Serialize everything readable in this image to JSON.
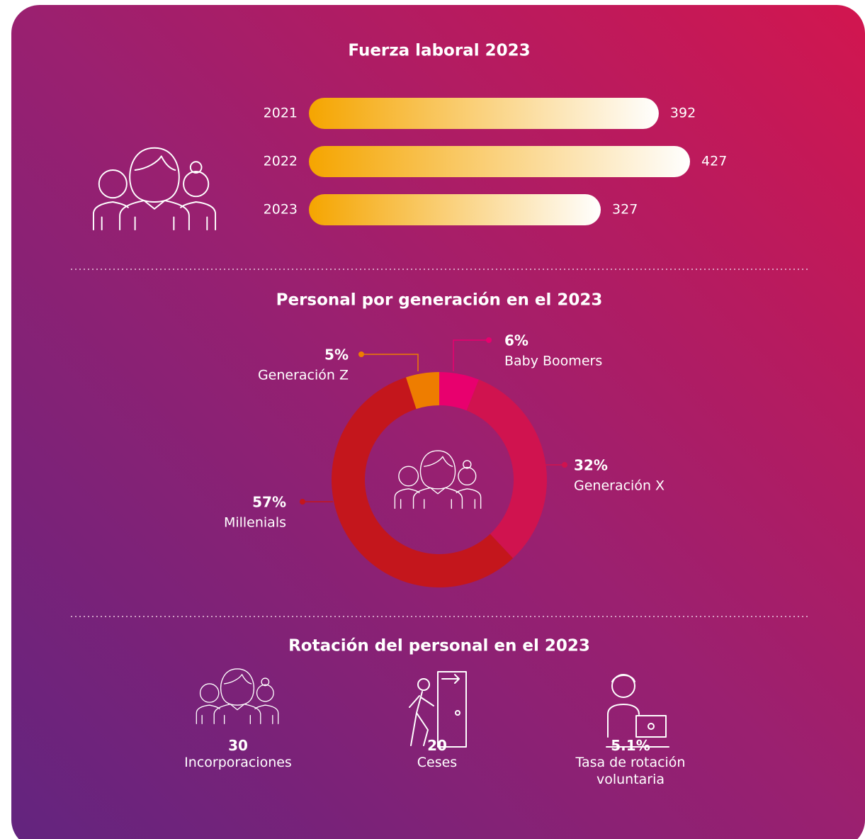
{
  "chart_data": [
    {
      "type": "bar",
      "orientation": "horizontal",
      "title": "Fuerza laboral 2023",
      "categories": [
        "2021",
        "2022",
        "2023"
      ],
      "values": [
        392,
        427,
        327
      ],
      "color": "#f5a500",
      "xlim": [
        0,
        500
      ]
    },
    {
      "type": "donut",
      "title": "Personal por generación en el 2023",
      "categories": [
        "Baby Boomers",
        "Generación X",
        "Millenials",
        "Generación Z"
      ],
      "values": [
        6,
        32,
        57,
        5
      ],
      "value_labels": [
        "6%",
        "32%",
        "57%",
        "5%"
      ],
      "colors": [
        "#e8006e",
        "#d0134f",
        "#c4161c",
        "#ee7d00"
      ]
    }
  ],
  "rotation": {
    "title": "Rotación del personal en el 2023",
    "items": [
      {
        "value": "30",
        "label": "Incorporaciones"
      },
      {
        "value": "20",
        "label": "Ceses"
      },
      {
        "value": "5.1%",
        "label": "Tasa de rotación voluntaria"
      }
    ]
  }
}
